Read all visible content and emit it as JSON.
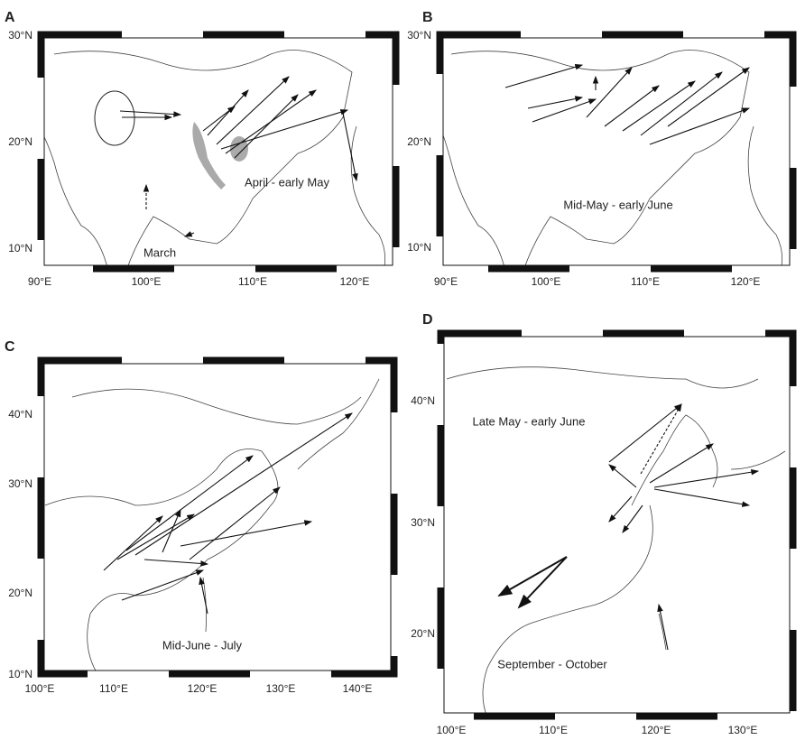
{
  "panels": [
    {
      "letter": "A",
      "lon_ticks": [
        "90°E",
        "100°E",
        "110°E",
        "120°E"
      ],
      "lat_ticks": [
        "30°N",
        "20°N",
        "10°N"
      ],
      "labels": [
        "April - early May",
        "March"
      ]
    },
    {
      "letter": "B",
      "lon_ticks": [
        "90°E",
        "100°E",
        "110°E",
        "120°E"
      ],
      "lat_ticks": [
        "30°N",
        "20°N",
        "10°N"
      ],
      "labels": [
        "Mid-May - early June"
      ]
    },
    {
      "letter": "C",
      "lon_ticks": [
        "100°E",
        "110°E",
        "120°E",
        "130°E",
        "140°E"
      ],
      "lat_ticks": [
        "40°N",
        "30°N",
        "20°N",
        "10°N"
      ],
      "labels": [
        "Mid-June - July"
      ]
    },
    {
      "letter": "D",
      "lon_ticks": [
        "100°E",
        "110°E",
        "120°E",
        "130°E"
      ],
      "lat_ticks": [
        "40°N",
        "30°N",
        "20°N"
      ],
      "labels": [
        "Late May - early June",
        "September - October"
      ]
    }
  ]
}
